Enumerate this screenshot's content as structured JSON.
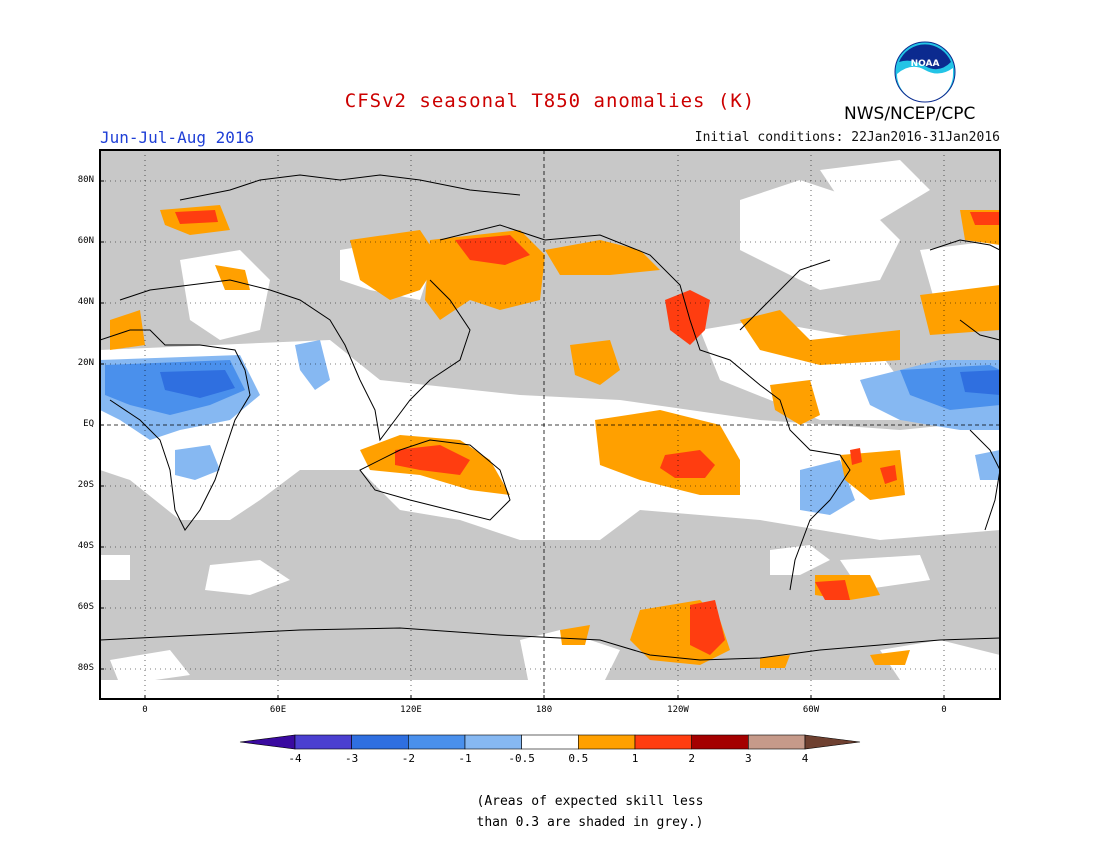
{
  "title": "CFSv2 seasonal T850 anomalies (K)",
  "season": "Jun-Jul-Aug 2016",
  "initial_conditions": "Initial conditions: 22Jan2016-31Jan2016",
  "agency": "NWS/NCEP/CPC",
  "logo_text": "NOAA",
  "colors": {
    "title": "#cc0000",
    "season": "#1f3fd6",
    "grey_skill": "#c8c8c8",
    "ocean_land_bg": "#ffffff"
  },
  "map": {
    "lat_labels": [
      "80N",
      "60N",
      "40N",
      "20N",
      "EQ",
      "20S",
      "40S",
      "60S",
      "80S"
    ],
    "lon_labels": [
      "0",
      "60E",
      "120E",
      "180",
      "120W",
      "60W",
      "0"
    ]
  },
  "legend": {
    "bins": [
      {
        "from": null,
        "to": -4,
        "color": "#3a0aa0"
      },
      {
        "from": -4,
        "to": -3,
        "color": "#4b3fd0"
      },
      {
        "from": -3,
        "to": -2,
        "color": "#2f6fe0"
      },
      {
        "from": -2,
        "to": -1,
        "color": "#4a90ec"
      },
      {
        "from": -1,
        "to": -0.5,
        "color": "#86b8f2"
      },
      {
        "from": -0.5,
        "to": 0.5,
        "color": "#ffffff"
      },
      {
        "from": 0.5,
        "to": 1,
        "color": "#ffa000"
      },
      {
        "from": 1,
        "to": 2,
        "color": "#ff3d10"
      },
      {
        "from": 2,
        "to": 3,
        "color": "#a40000"
      },
      {
        "from": 3,
        "to": 4,
        "color": "#c69a8a"
      },
      {
        "from": 4,
        "to": null,
        "color": "#6e4030"
      }
    ],
    "labels": [
      "-4",
      "-3",
      "-2",
      "-1",
      "-0.5",
      "0.5",
      "1",
      "2",
      "3",
      "4"
    ]
  },
  "note": "(Areas of expected skill less\nthan 0.3 are shaded in grey.)"
}
